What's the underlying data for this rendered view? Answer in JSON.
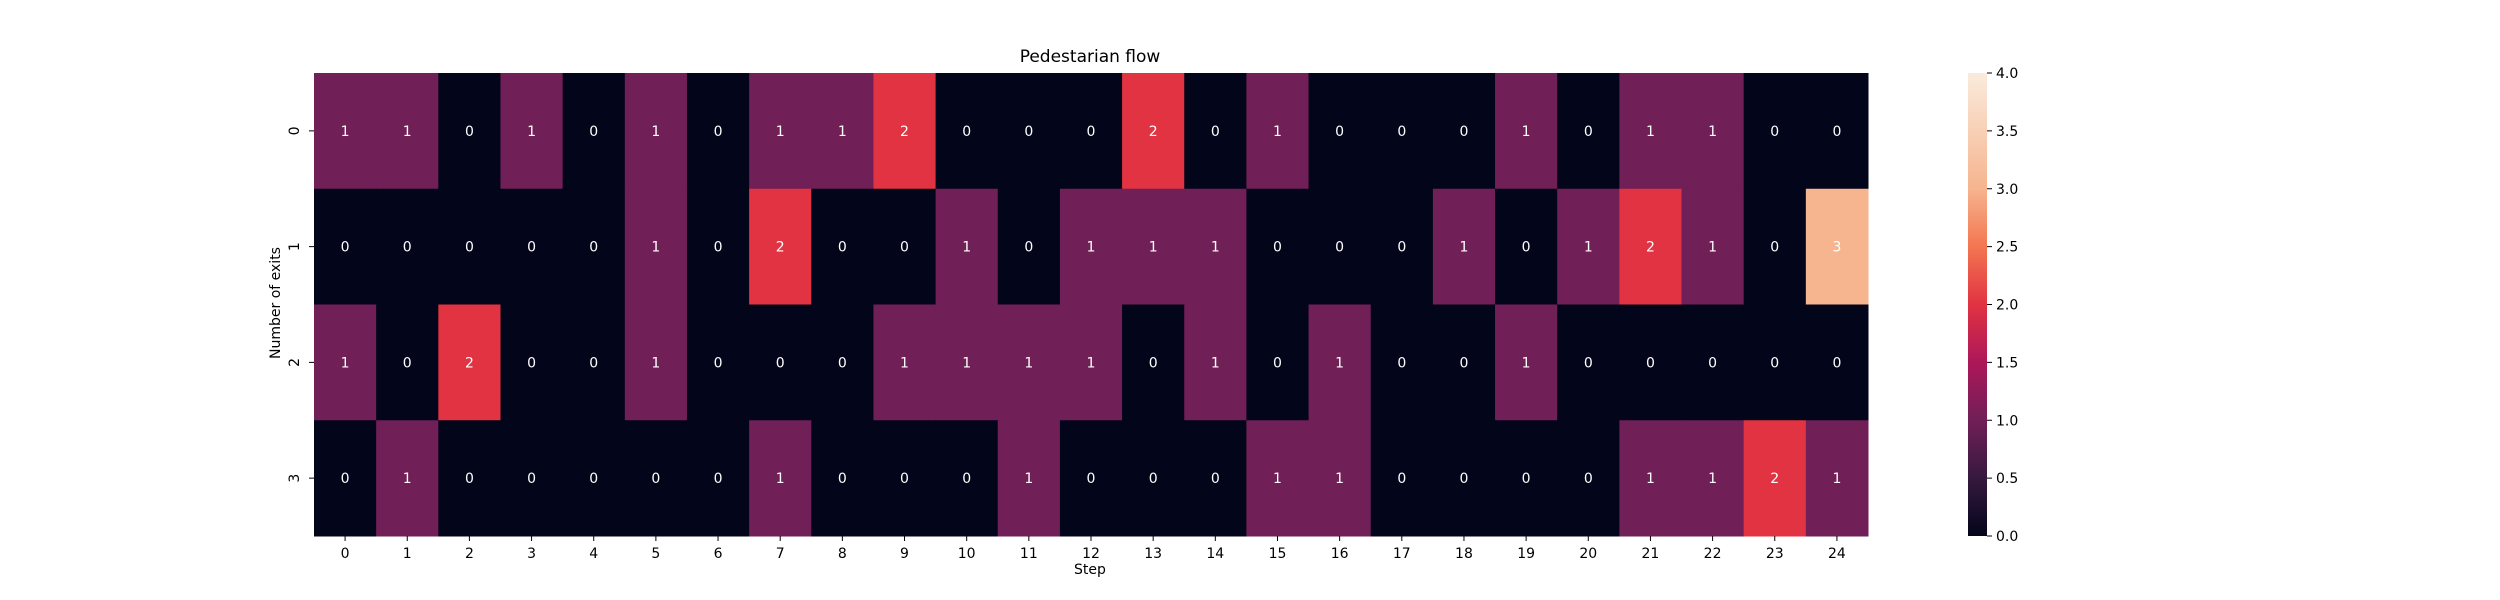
{
  "chart_data": {
    "type": "heatmap",
    "title": "Pedestarian flow",
    "xlabel": "Step",
    "ylabel": "Number of exits",
    "x_categories": [
      "0",
      "1",
      "2",
      "3",
      "4",
      "5",
      "6",
      "7",
      "8",
      "9",
      "10",
      "11",
      "12",
      "13",
      "14",
      "15",
      "16",
      "17",
      "18",
      "19",
      "20",
      "21",
      "22",
      "23",
      "24"
    ],
    "y_categories": [
      "0",
      "1",
      "2",
      "3"
    ],
    "values": [
      [
        1,
        1,
        0,
        1,
        0,
        1,
        0,
        1,
        1,
        2,
        0,
        0,
        0,
        2,
        0,
        1,
        0,
        0,
        0,
        1,
        0,
        1,
        1,
        0,
        0
      ],
      [
        0,
        0,
        0,
        0,
        0,
        1,
        0,
        2,
        0,
        0,
        1,
        0,
        1,
        1,
        1,
        0,
        0,
        0,
        1,
        0,
        1,
        2,
        1,
        0,
        3
      ],
      [
        1,
        0,
        2,
        0,
        0,
        1,
        0,
        0,
        0,
        1,
        1,
        1,
        1,
        0,
        1,
        0,
        1,
        0,
        0,
        1,
        0,
        0,
        0,
        0,
        0
      ],
      [
        0,
        1,
        0,
        0,
        0,
        0,
        0,
        1,
        0,
        0,
        0,
        1,
        0,
        0,
        0,
        1,
        1,
        0,
        0,
        0,
        0,
        1,
        1,
        2,
        1
      ]
    ],
    "vmin": 0,
    "vmax": 4,
    "colorbar_ticks": [
      "0.0",
      "0.5",
      "1.0",
      "1.5",
      "2.0",
      "2.5",
      "3.0",
      "3.5",
      "4.0"
    ],
    "colormap": "rocket",
    "colors": {
      "0": "#03051a",
      "1": "#701f57",
      "2": "#e13342",
      "3": "#f6b48f",
      "4": "#faebdd"
    }
  }
}
